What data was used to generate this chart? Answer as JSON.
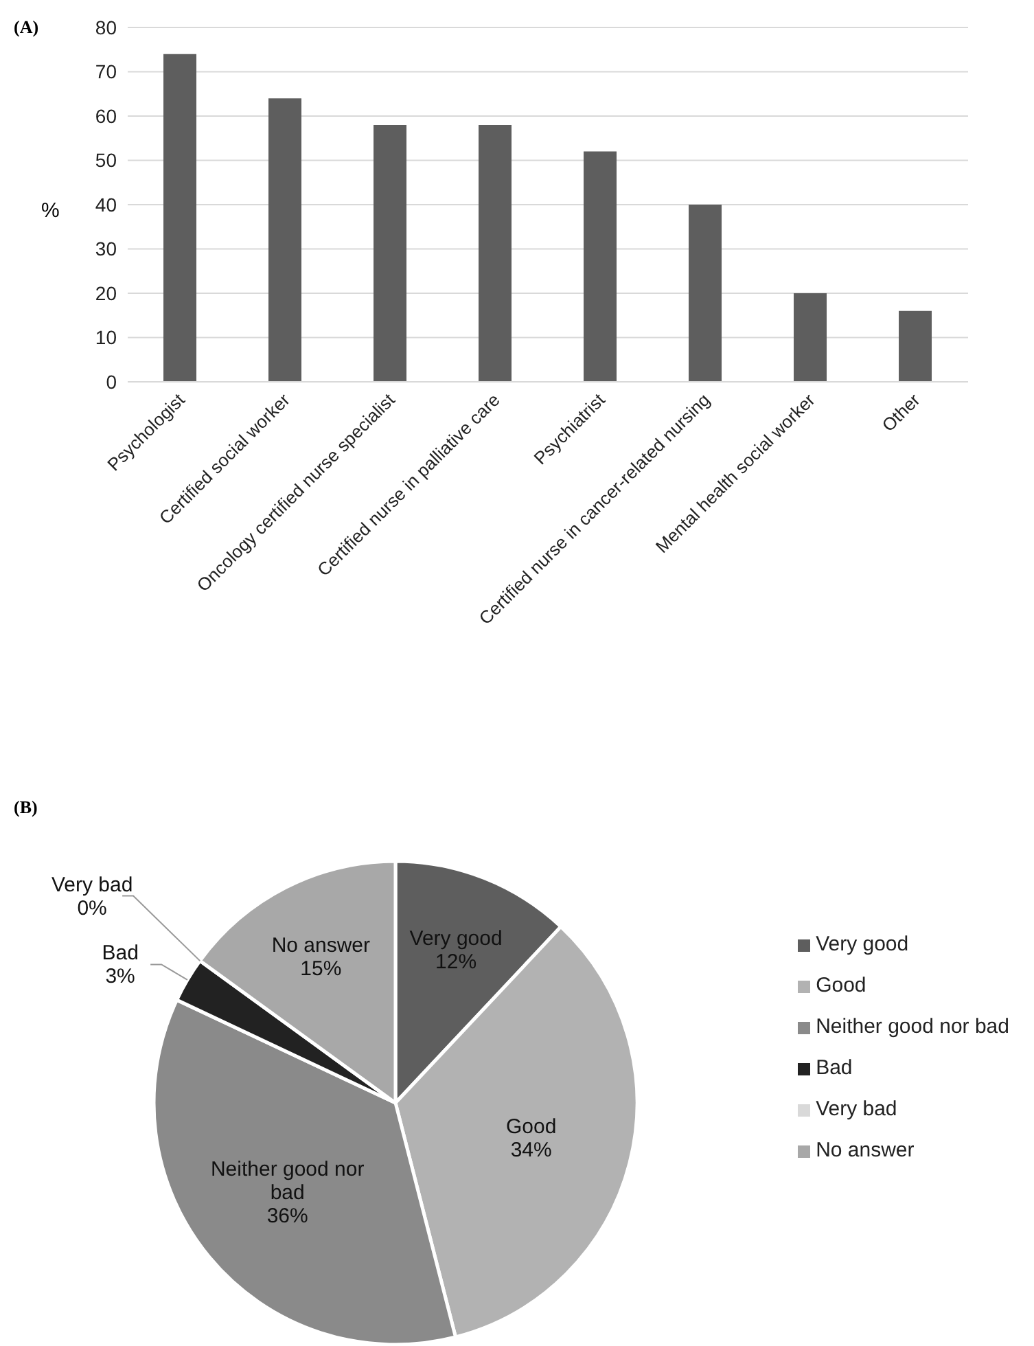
{
  "chart_data": [
    {
      "type": "bar",
      "title": "(A)",
      "ylabel": "%",
      "categories": [
        "Psychologist",
        "Certified social worker",
        "Oncology certified nurse specialist",
        "Certified nurse in palliative care",
        "Psychiatrist",
        "Certified nurse in cancer-related nursing",
        "Mental health social worker",
        "Other"
      ],
      "values": [
        74,
        64,
        58,
        58,
        52,
        40,
        20,
        16
      ],
      "color": "#5e5e5e",
      "ylim": [
        0,
        80
      ],
      "yticks": [
        0,
        10,
        20,
        30,
        40,
        50,
        60,
        70,
        80
      ],
      "grid": "y"
    },
    {
      "type": "pie",
      "title": "(B)",
      "categories": [
        "Very good",
        "Good",
        "Neither good nor bad",
        "Bad",
        "Very bad",
        "No answer"
      ],
      "values": [
        12,
        34,
        36,
        3,
        0,
        15
      ],
      "value_labels": [
        "12%",
        "34%",
        "36%",
        "3%",
        "0%",
        "15%"
      ],
      "colors": [
        "#5e5e5e",
        "#b2b2b2",
        "#8a8a8a",
        "#222222",
        "#d9d9d9",
        "#a8a8a8"
      ],
      "legend": "right"
    }
  ]
}
